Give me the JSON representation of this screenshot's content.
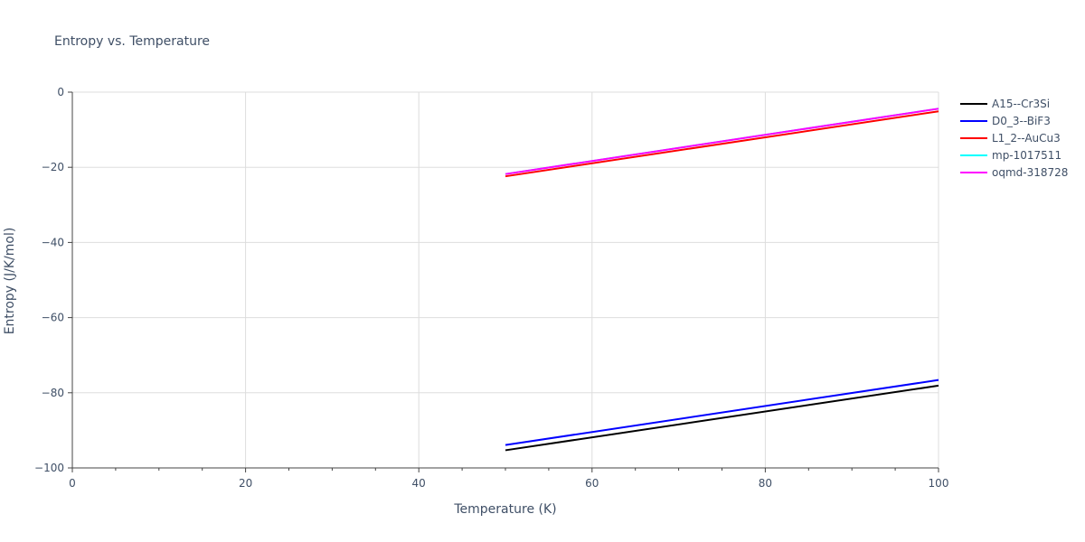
{
  "chart_data": {
    "type": "line",
    "title": "Entropy vs. Temperature",
    "xlabel": "Temperature (K)",
    "ylabel": "Entropy (J/K/mol)",
    "xlim": [
      0,
      100
    ],
    "ylim": [
      -100,
      0
    ],
    "x_ticks": [
      0,
      20,
      40,
      60,
      80,
      100
    ],
    "y_ticks": [
      0,
      -20,
      -40,
      -60,
      -80,
      -100
    ],
    "x_tick_labels": [
      "0",
      "20",
      "40",
      "60",
      "80",
      "100"
    ],
    "y_tick_labels": [
      "0",
      "−20",
      "−40",
      "−60",
      "−80",
      "−100"
    ],
    "grid": true,
    "legend_position": "right",
    "series": [
      {
        "name": "A15--Cr3Si",
        "color": "#000000",
        "x": [
          50,
          100
        ],
        "y": [
          -95.3,
          -78.1
        ]
      },
      {
        "name": "D0_3--BiF3",
        "color": "#0000ff",
        "x": [
          50,
          100
        ],
        "y": [
          -93.9,
          -76.6
        ]
      },
      {
        "name": "L1_2--AuCu3",
        "color": "#ff0000",
        "x": [
          50,
          100
        ],
        "y": [
          -22.4,
          -5.1
        ]
      },
      {
        "name": "mp-1017511",
        "color": "#00ffff",
        "x": [
          50,
          100
        ],
        "y": [
          -21.8,
          -4.4
        ]
      },
      {
        "name": "oqmd-318728",
        "color": "#ff00ff",
        "x": [
          50,
          100
        ],
        "y": [
          -21.8,
          -4.4
        ]
      }
    ]
  }
}
